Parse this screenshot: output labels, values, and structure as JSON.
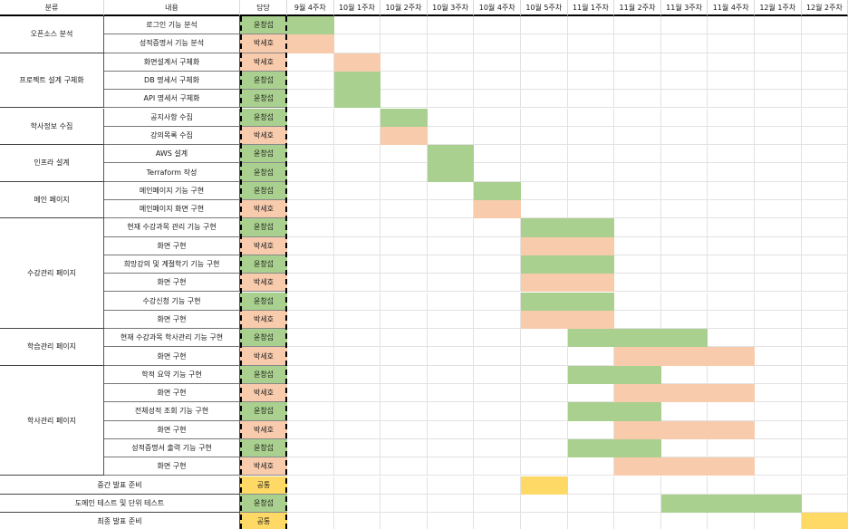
{
  "headers": {
    "category": "분류",
    "content": "내용",
    "owner": "담당",
    "weeks": [
      "9월 4주차",
      "10월 1주차",
      "10월 2주차",
      "10월 3주차",
      "10월 4주차",
      "10월 5주차",
      "11월 1주차",
      "11월 2주차",
      "11월 3주차",
      "11월 4주차",
      "12월 1주차",
      "12월 2주차"
    ]
  },
  "colors": {
    "owner_A": "#a9d08e",
    "owner_B": "#f8cbad",
    "common": "#ffd966"
  },
  "owners": {
    "A": "윤창섭",
    "B": "박세호",
    "C": "공통"
  },
  "categories": [
    {
      "label": "오픈소스 분석",
      "rows": 2
    },
    {
      "label": "프로젝트 설계 구체화",
      "rows": 3
    },
    {
      "label": "학사정보 수집",
      "rows": 2
    },
    {
      "label": "인프라 설계",
      "rows": 2
    },
    {
      "label": "메인 페이지",
      "rows": 2
    },
    {
      "label": "수강관리 페이지",
      "rows": 6
    },
    {
      "label": "학습관리 페이지",
      "rows": 2
    },
    {
      "label": "학사관리 페이지",
      "rows": 6
    }
  ],
  "rows": [
    {
      "task": "로그인 기능 분석",
      "owner": "윤창섭",
      "start": 0,
      "end": 0
    },
    {
      "task": "성적증명서 기능 분석",
      "owner": "박세호",
      "start": 0,
      "end": 0
    },
    {
      "task": "화면설계서 구체화",
      "owner": "박세호",
      "start": 1,
      "end": 1
    },
    {
      "task": "DB 명세서 구체화",
      "owner": "윤창섭",
      "start": 1,
      "end": 1
    },
    {
      "task": "API 명세서 구체화",
      "owner": "윤창섭",
      "start": 1,
      "end": 1
    },
    {
      "task": "공지사항 수집",
      "owner": "윤창섭",
      "start": 2,
      "end": 2
    },
    {
      "task": "강의목록 수집",
      "owner": "박세호",
      "start": 2,
      "end": 2
    },
    {
      "task": "AWS 설계",
      "owner": "윤창섭",
      "start": 3,
      "end": 3
    },
    {
      "task": "Terraform 작성",
      "owner": "윤창섭",
      "start": 3,
      "end": 3
    },
    {
      "task": "메인페이지 기능 구현",
      "owner": "윤창섭",
      "start": 4,
      "end": 4
    },
    {
      "task": "메인페이지 화면 구현",
      "owner": "박세호",
      "start": 4,
      "end": 4
    },
    {
      "task": "현재 수강과목 관리 기능 구현",
      "owner": "윤창섭",
      "start": 5,
      "end": 6
    },
    {
      "task": "화면 구현",
      "owner": "박세호",
      "start": 5,
      "end": 6
    },
    {
      "task": "희망강의 및 계절학기 기능 구현",
      "owner": "윤창섭",
      "start": 5,
      "end": 6
    },
    {
      "task": "화면 구현",
      "owner": "박세호",
      "start": 5,
      "end": 6
    },
    {
      "task": "수강신청 기능 구현",
      "owner": "윤창섭",
      "start": 5,
      "end": 6
    },
    {
      "task": "화면 구현",
      "owner": "박세호",
      "start": 5,
      "end": 6
    },
    {
      "task": "현재 수강과목 학사관리 기능 구현",
      "owner": "윤창섭",
      "start": 6,
      "end": 8
    },
    {
      "task": "화면 구현",
      "owner": "박세호",
      "start": 7,
      "end": 9
    },
    {
      "task": "학적 요약 기능 구현",
      "owner": "윤창섭",
      "start": 6,
      "end": 7
    },
    {
      "task": "화면 구현",
      "owner": "박세호",
      "start": 7,
      "end": 9
    },
    {
      "task": "전체성적 조회 기능 구현",
      "owner": "윤창섭",
      "start": 6,
      "end": 7
    },
    {
      "task": "화면 구현",
      "owner": "박세호",
      "start": 7,
      "end": 9
    },
    {
      "task": "성적증명서 출력 기능 구현",
      "owner": "윤창섭",
      "start": 6,
      "end": 7
    },
    {
      "task": "화면 구현",
      "owner": "박세호",
      "start": 7,
      "end": 9
    }
  ],
  "full_rows": [
    {
      "label": "중간 발표 준비",
      "owner": "공통",
      "start": 5,
      "end": 5
    },
    {
      "label": "도메인 테스트 및 단위 테스트",
      "owner": "윤창섭",
      "start": 8,
      "end": 10
    },
    {
      "label": "최종 발표 준비",
      "owner": "공통",
      "start": 11,
      "end": 11
    }
  ]
}
